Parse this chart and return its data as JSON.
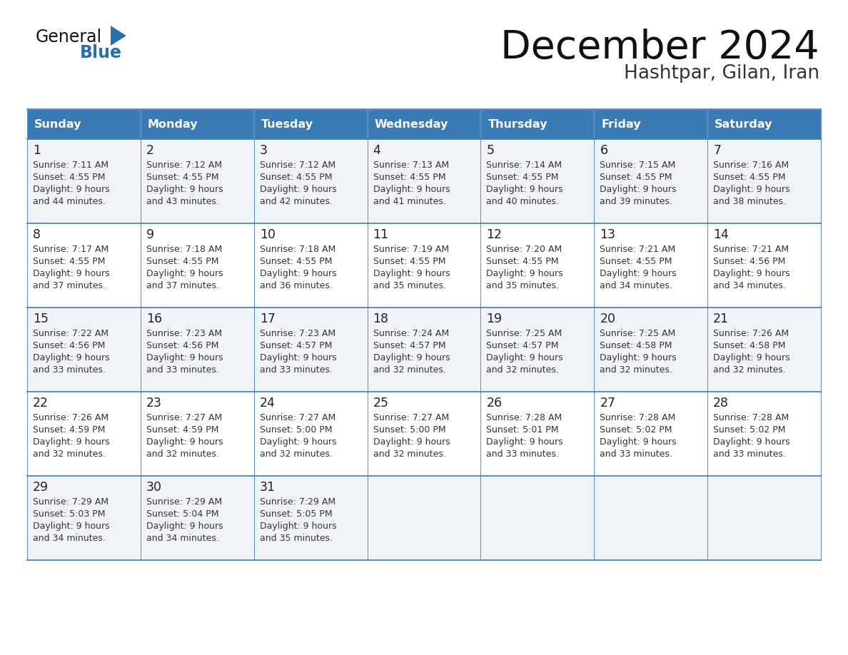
{
  "title": "December 2024",
  "subtitle": "Hashtpar, Gilan, Iran",
  "days_of_week": [
    "Sunday",
    "Monday",
    "Tuesday",
    "Wednesday",
    "Thursday",
    "Friday",
    "Saturday"
  ],
  "header_bg": "#3a7ab5",
  "header_text_color": "#ffffff",
  "row_bg_odd": "#f0f4f8",
  "row_bg_even": "#ffffff",
  "cell_text_color": "#333333",
  "day_num_color": "#222222",
  "border_color": "#3a7ab5",
  "title_color": "#111111",
  "subtitle_color": "#333333",
  "logo_general_color": "#111111",
  "logo_blue_color": "#2a6faa",
  "calendar_data": [
    [
      {
        "day": 1,
        "sunrise": "7:11 AM",
        "sunset": "4:55 PM",
        "daylight": "9 hours and 44 minutes."
      },
      {
        "day": 2,
        "sunrise": "7:12 AM",
        "sunset": "4:55 PM",
        "daylight": "9 hours and 43 minutes."
      },
      {
        "day": 3,
        "sunrise": "7:12 AM",
        "sunset": "4:55 PM",
        "daylight": "9 hours and 42 minutes."
      },
      {
        "day": 4,
        "sunrise": "7:13 AM",
        "sunset": "4:55 PM",
        "daylight": "9 hours and 41 minutes."
      },
      {
        "day": 5,
        "sunrise": "7:14 AM",
        "sunset": "4:55 PM",
        "daylight": "9 hours and 40 minutes."
      },
      {
        "day": 6,
        "sunrise": "7:15 AM",
        "sunset": "4:55 PM",
        "daylight": "9 hours and 39 minutes."
      },
      {
        "day": 7,
        "sunrise": "7:16 AM",
        "sunset": "4:55 PM",
        "daylight": "9 hours and 38 minutes."
      }
    ],
    [
      {
        "day": 8,
        "sunrise": "7:17 AM",
        "sunset": "4:55 PM",
        "daylight": "9 hours and 37 minutes."
      },
      {
        "day": 9,
        "sunrise": "7:18 AM",
        "sunset": "4:55 PM",
        "daylight": "9 hours and 37 minutes."
      },
      {
        "day": 10,
        "sunrise": "7:18 AM",
        "sunset": "4:55 PM",
        "daylight": "9 hours and 36 minutes."
      },
      {
        "day": 11,
        "sunrise": "7:19 AM",
        "sunset": "4:55 PM",
        "daylight": "9 hours and 35 minutes."
      },
      {
        "day": 12,
        "sunrise": "7:20 AM",
        "sunset": "4:55 PM",
        "daylight": "9 hours and 35 minutes."
      },
      {
        "day": 13,
        "sunrise": "7:21 AM",
        "sunset": "4:55 PM",
        "daylight": "9 hours and 34 minutes."
      },
      {
        "day": 14,
        "sunrise": "7:21 AM",
        "sunset": "4:56 PM",
        "daylight": "9 hours and 34 minutes."
      }
    ],
    [
      {
        "day": 15,
        "sunrise": "7:22 AM",
        "sunset": "4:56 PM",
        "daylight": "9 hours and 33 minutes."
      },
      {
        "day": 16,
        "sunrise": "7:23 AM",
        "sunset": "4:56 PM",
        "daylight": "9 hours and 33 minutes."
      },
      {
        "day": 17,
        "sunrise": "7:23 AM",
        "sunset": "4:57 PM",
        "daylight": "9 hours and 33 minutes."
      },
      {
        "day": 18,
        "sunrise": "7:24 AM",
        "sunset": "4:57 PM",
        "daylight": "9 hours and 32 minutes."
      },
      {
        "day": 19,
        "sunrise": "7:25 AM",
        "sunset": "4:57 PM",
        "daylight": "9 hours and 32 minutes."
      },
      {
        "day": 20,
        "sunrise": "7:25 AM",
        "sunset": "4:58 PM",
        "daylight": "9 hours and 32 minutes."
      },
      {
        "day": 21,
        "sunrise": "7:26 AM",
        "sunset": "4:58 PM",
        "daylight": "9 hours and 32 minutes."
      }
    ],
    [
      {
        "day": 22,
        "sunrise": "7:26 AM",
        "sunset": "4:59 PM",
        "daylight": "9 hours and 32 minutes."
      },
      {
        "day": 23,
        "sunrise": "7:27 AM",
        "sunset": "4:59 PM",
        "daylight": "9 hours and 32 minutes."
      },
      {
        "day": 24,
        "sunrise": "7:27 AM",
        "sunset": "5:00 PM",
        "daylight": "9 hours and 32 minutes."
      },
      {
        "day": 25,
        "sunrise": "7:27 AM",
        "sunset": "5:00 PM",
        "daylight": "9 hours and 32 minutes."
      },
      {
        "day": 26,
        "sunrise": "7:28 AM",
        "sunset": "5:01 PM",
        "daylight": "9 hours and 33 minutes."
      },
      {
        "day": 27,
        "sunrise": "7:28 AM",
        "sunset": "5:02 PM",
        "daylight": "9 hours and 33 minutes."
      },
      {
        "day": 28,
        "sunrise": "7:28 AM",
        "sunset": "5:02 PM",
        "daylight": "9 hours and 33 minutes."
      }
    ],
    [
      {
        "day": 29,
        "sunrise": "7:29 AM",
        "sunset": "5:03 PM",
        "daylight": "9 hours and 34 minutes."
      },
      {
        "day": 30,
        "sunrise": "7:29 AM",
        "sunset": "5:04 PM",
        "daylight": "9 hours and 34 minutes."
      },
      {
        "day": 31,
        "sunrise": "7:29 AM",
        "sunset": "5:05 PM",
        "daylight": "9 hours and 35 minutes."
      },
      null,
      null,
      null,
      null
    ]
  ]
}
